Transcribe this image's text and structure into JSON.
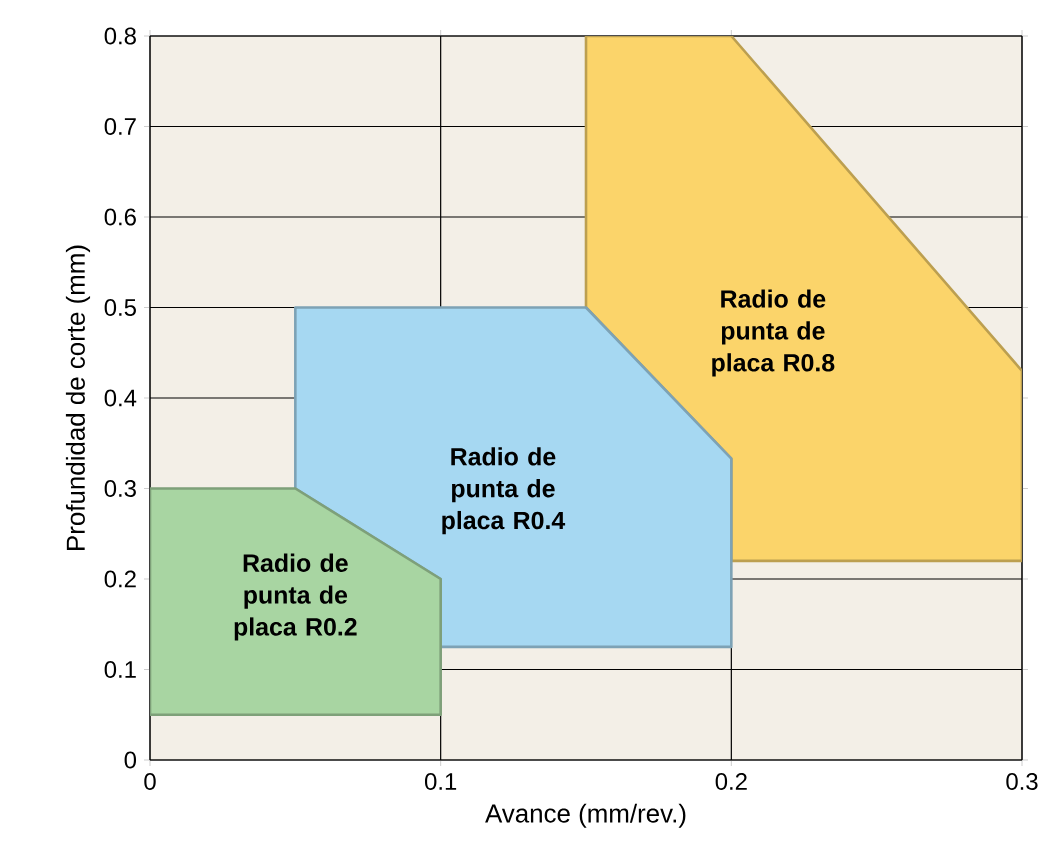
{
  "chart_data": {
    "type": "area",
    "xlabel": "Avance (mm/rev.)",
    "ylabel": "Profundidad de corte (mm)",
    "xlim": [
      0,
      0.3
    ],
    "ylim": [
      0,
      0.8
    ],
    "xticks": [
      0,
      0.1,
      0.2,
      0.3
    ],
    "yticks": [
      0,
      0.1,
      0.2,
      0.3,
      0.4,
      0.5,
      0.6,
      0.7,
      0.8
    ],
    "grid": true,
    "series": [
      {
        "color": "#fbd46a",
        "x": [
          0.15,
          0.15,
          0.2,
          0.3,
          0.3,
          0.2,
          0.2
        ],
        "values": [
          0.5,
          0.8,
          0.8,
          0.43,
          0.22,
          0.22,
          0.333
        ]
      },
      {
        "color": "#a6d8f2",
        "x": [
          0.05,
          0.15,
          0.2,
          0.2,
          0.1,
          0.1,
          0.05
        ],
        "values": [
          0.5,
          0.5,
          0.333,
          0.125,
          0.125,
          0.2,
          0.3
        ]
      },
      {
        "color": "#a8d5a2",
        "x": [
          0,
          0.05,
          0.1,
          0.1,
          0
        ],
        "values": [
          0.3,
          0.3,
          0.2,
          0.05,
          0.05
        ]
      }
    ],
    "annotations": [
      "Radio de punta de placa R0.8",
      "Radio de punta de placa R0.4",
      "Radio de punta de placa R0.2"
    ]
  }
}
